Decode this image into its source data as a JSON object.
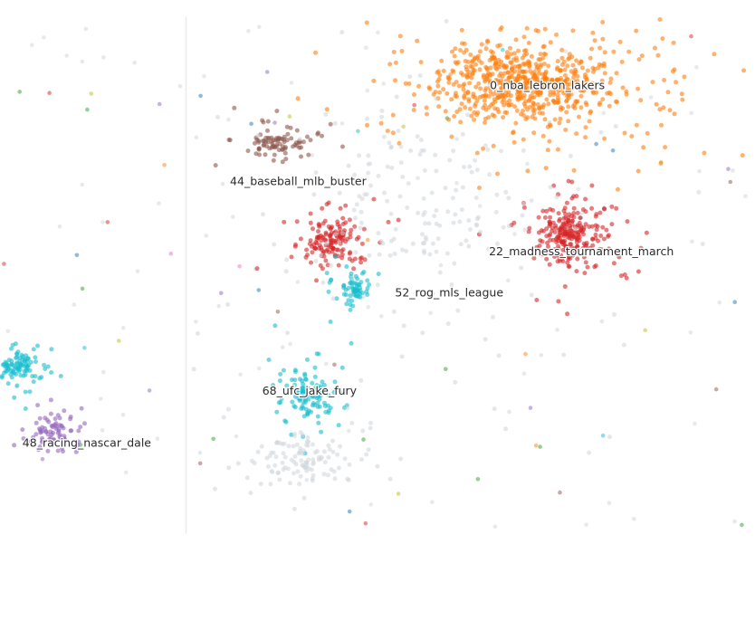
{
  "chart_data": {
    "type": "scatter",
    "title": "",
    "xlabel": "",
    "ylabel": "",
    "xlim": [
      0,
      100
    ],
    "ylim": [
      0,
      100
    ],
    "grid": false,
    "legend": "none",
    "colors": {
      "orange": "#ff7f0e",
      "brown": "#8c564b",
      "red": "#d62728",
      "cyan": "#17becf",
      "purple": "#9467bd",
      "pink": "#e377c2",
      "blue": "#1f77b4",
      "green": "#2ca02c",
      "olive": "#bcbd22",
      "gray": "#cfd6da"
    },
    "clusters": [
      {
        "label": "0_nba_lebron_lakers",
        "color": "orange",
        "cx": 69.5,
        "cy": 87,
        "sx": 9.5,
        "sy": 6.5,
        "n": 700,
        "label_x": 72.5,
        "label_y": 86.5
      },
      {
        "label": "44_baseball_mlb_buster",
        "color": "brown",
        "cx": 36.5,
        "cy": 75.5,
        "sx": 3.5,
        "sy": 2.2,
        "n": 90,
        "label_x": 39.5,
        "label_y": 68
      },
      {
        "label": "22_madness_tournament_march",
        "color": "red",
        "cx": 75.5,
        "cy": 57.5,
        "sx": 3.5,
        "sy": 4.5,
        "n": 260,
        "label_x": 77,
        "label_y": 54.5
      },
      {
        "label": "",
        "color": "red",
        "cx": 44,
        "cy": 56.5,
        "sx": 3,
        "sy": 3.5,
        "n": 150,
        "label_x": 0,
        "label_y": 0
      },
      {
        "label": "52_rog_mls_league",
        "color": "cyan",
        "cx": 47,
        "cy": 47,
        "sx": 1.5,
        "sy": 2.2,
        "n": 70,
        "label_x": 59.5,
        "label_y": 46.5
      },
      {
        "label": "68_ufc_jake_fury",
        "color": "cyan",
        "cx": 41,
        "cy": 27,
        "sx": 2.5,
        "sy": 3.5,
        "n": 140,
        "label_x": 41,
        "label_y": 27.5
      },
      {
        "label": "48_racing_nascar_dale",
        "color": "purple",
        "cx": 7,
        "cy": 20,
        "sx": 3,
        "sy": 2.5,
        "n": 80,
        "label_x": 11.5,
        "label_y": 17.5
      },
      {
        "label": "",
        "color": "cyan",
        "cx": 2,
        "cy": 32.5,
        "sx": 2.5,
        "sy": 2.5,
        "n": 110,
        "label_x": 0,
        "label_y": 0
      },
      {
        "label": "",
        "color": "gray",
        "cx": 56,
        "cy": 62,
        "sx": 13,
        "sy": 16,
        "n": 200,
        "label_x": 0,
        "label_y": 0
      },
      {
        "label": "",
        "color": "gray",
        "cx": 40,
        "cy": 14.5,
        "sx": 5,
        "sy": 4,
        "n": 120,
        "label_x": 0,
        "label_y": 0
      }
    ]
  }
}
